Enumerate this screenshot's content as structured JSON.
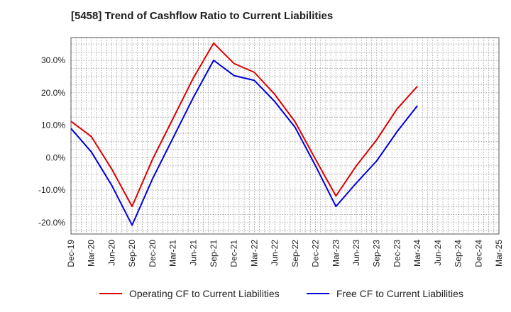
{
  "chart_data": {
    "type": "line",
    "title": "[5458]  Trend of Cashflow Ratio to Current Liabilities",
    "xlabel": "",
    "ylabel": "",
    "categories": [
      "Dec-19",
      "Mar-20",
      "Jun-20",
      "Sep-20",
      "Dec-20",
      "Mar-21",
      "Jun-21",
      "Sep-21",
      "Dec-21",
      "Mar-22",
      "Jun-22",
      "Sep-22",
      "Dec-22",
      "Mar-23",
      "Jun-23",
      "Sep-23",
      "Dec-23",
      "Mar-24",
      "Jun-24",
      "Sep-24",
      "Dec-24",
      "Mar-25"
    ],
    "y_ticks": [
      30,
      20,
      10,
      0,
      -10,
      -20
    ],
    "y_tick_labels": [
      "30.0%",
      "20.0%",
      "10.0%",
      "0.0%",
      "-10.0%",
      "-20.0%"
    ],
    "ylim": [
      -23.5,
      37
    ],
    "grid": true,
    "legend_position": "bottom",
    "series": [
      {
        "name": "Operating CF to Current Liabilities",
        "color": "#dd0000",
        "values": [
          11.2,
          6.5,
          -3.5,
          -15.0,
          -0.5,
          12.0,
          24.5,
          35.3,
          29.0,
          26.3,
          19.5,
          11.0,
          -0.5,
          -11.8,
          -2.5,
          5.5,
          15.0,
          22.0,
          null,
          null,
          null,
          null
        ]
      },
      {
        "name": "Free CF to Current Liabilities",
        "color": "#0000dd",
        "values": [
          9.0,
          1.8,
          -8.5,
          -20.8,
          -6.5,
          6.0,
          18.5,
          30.0,
          25.3,
          23.8,
          17.3,
          9.3,
          -2.5,
          -15.0,
          -7.8,
          -1.0,
          8.0,
          16.0,
          null,
          null,
          null,
          null
        ]
      }
    ]
  }
}
